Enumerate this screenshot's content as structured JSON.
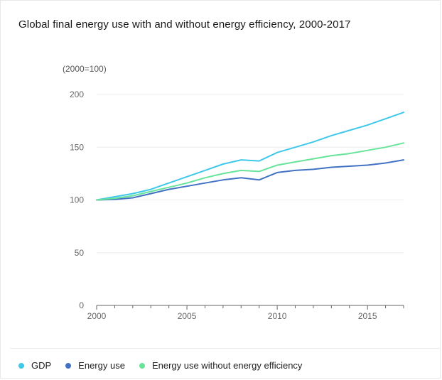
{
  "chart_data": {
    "type": "line",
    "title": "Global final energy use with and without energy efficiency, 2000-2017",
    "unit_label": "(2000=100)",
    "x": [
      2000,
      2001,
      2002,
      2003,
      2004,
      2005,
      2006,
      2007,
      2008,
      2009,
      2010,
      2011,
      2012,
      2013,
      2014,
      2015,
      2016,
      2017
    ],
    "xticks": [
      2000,
      2005,
      2010,
      2015
    ],
    "yticks": [
      0,
      50,
      100,
      150,
      200
    ],
    "xlim": [
      2000,
      2017
    ],
    "ylim": [
      0,
      200
    ],
    "grid": true,
    "legend_position": "bottom",
    "series": [
      {
        "name": "GDP",
        "color": "#3fc8ea",
        "values": [
          100,
          103,
          106,
          110,
          116,
          122,
          128,
          134,
          138,
          137,
          145,
          150,
          155,
          161,
          166,
          171,
          177,
          183
        ]
      },
      {
        "name": "Energy use",
        "color": "#4272c4",
        "values": [
          100,
          100.5,
          102,
          106,
          110,
          113,
          116,
          119,
          121,
          119,
          126,
          128,
          129,
          131,
          132,
          133,
          135,
          138
        ]
      },
      {
        "name": "Energy use without energy efficiency",
        "color": "#67e39a",
        "values": [
          100,
          101.5,
          104,
          108,
          112,
          116,
          121,
          125,
          128,
          127,
          133,
          136,
          139,
          142,
          144,
          147,
          150,
          154
        ]
      }
    ]
  }
}
